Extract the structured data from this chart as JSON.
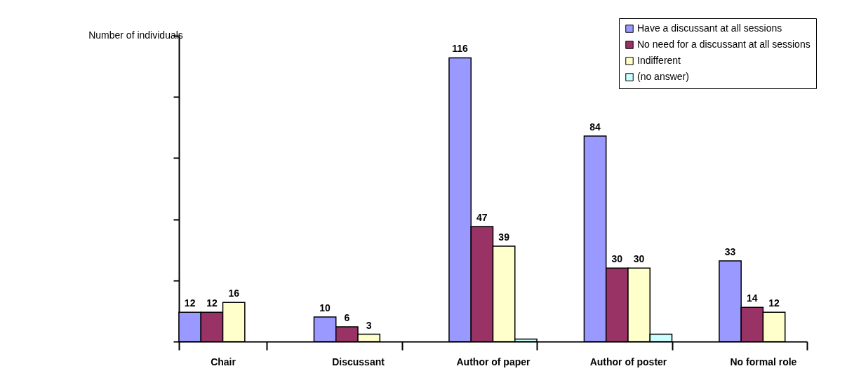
{
  "chart_data": {
    "type": "bar",
    "ylabel": "Number of individuals",
    "categories": [
      "Chair",
      "Discussant",
      "Author of paper",
      "Author of poster",
      "No formal role"
    ],
    "series": [
      {
        "name": "Have a discussant at all sessions",
        "color": "#9999ff",
        "values": [
          12,
          10,
          116,
          84,
          33
        ],
        "value_labels": [
          "12",
          "10",
          "116",
          "84",
          "33"
        ]
      },
      {
        "name": "No need for a discussant at all sessions",
        "color": "#993366",
        "values": [
          12,
          6,
          47,
          30,
          14
        ],
        "value_labels": [
          "12",
          "6",
          "47",
          "30",
          "14"
        ]
      },
      {
        "name": "Indifferent",
        "color": "#ffffcc",
        "values": [
          16,
          3,
          39,
          30,
          12
        ],
        "value_labels": [
          "16",
          "3",
          "39",
          "30",
          "12"
        ]
      },
      {
        "name": "(no answer)",
        "color": "#ccffff",
        "values": [
          null,
          null,
          1,
          3,
          null
        ],
        "value_labels": [
          null,
          null,
          null,
          null,
          null
        ]
      }
    ],
    "ylim": [
      0,
      125
    ],
    "yticks": [
      {
        "value": 0,
        "label": null
      },
      {
        "value": 25,
        "label": null
      },
      {
        "value": 50,
        "label": null
      },
      {
        "value": 75,
        "label": null
      },
      {
        "value": 100,
        "label": null
      },
      {
        "value": 125,
        "label": null
      }
    ],
    "tick_labels": "x",
    "legend": "top right"
  }
}
